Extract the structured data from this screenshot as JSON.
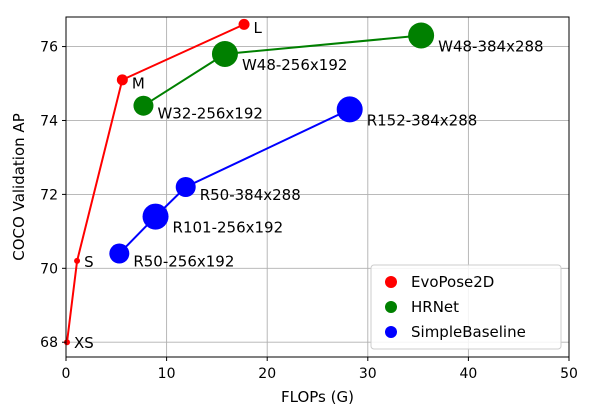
{
  "chart_data": {
    "type": "scatter",
    "xlabel": "FLOPs (G)",
    "ylabel": "COCO Validation AP",
    "xlim": [
      0,
      50
    ],
    "ylim": [
      67.6,
      76.8
    ],
    "xticks": [
      0,
      10,
      20,
      30,
      40,
      50
    ],
    "yticks": [
      68,
      70,
      72,
      74,
      76
    ],
    "grid": true,
    "legend_position": "bottom-right",
    "series": [
      {
        "name": "EvoPose2D",
        "color": "#ff0000",
        "points": [
          {
            "x": 0.1,
            "y": 68.0,
            "label": "XS",
            "size": 1
          },
          {
            "x": 1.1,
            "y": 70.2,
            "label": "S",
            "size": 1
          },
          {
            "x": 5.6,
            "y": 75.1,
            "label": "M",
            "size": 2
          },
          {
            "x": 17.7,
            "y": 76.6,
            "label": "L",
            "size": 2
          }
        ]
      },
      {
        "name": "HRNet",
        "color": "#008000",
        "points": [
          {
            "x": 7.7,
            "y": 74.4,
            "label": "W32-256x192",
            "size": 3
          },
          {
            "x": 15.8,
            "y": 75.8,
            "label": "W48-256x192",
            "size": 4
          },
          {
            "x": 35.3,
            "y": 76.3,
            "label": "W48-384x288",
            "size": 4
          }
        ]
      },
      {
        "name": "SimpleBaseline",
        "color": "#0000ff",
        "points": [
          {
            "x": 5.3,
            "y": 70.4,
            "label": "R50-256x192",
            "size": 3
          },
          {
            "x": 8.9,
            "y": 71.4,
            "label": "R101-256x192",
            "size": 4
          },
          {
            "x": 11.9,
            "y": 72.2,
            "label": "R50-384x288",
            "size": 3
          },
          {
            "x": 28.2,
            "y": 74.3,
            "label": "R152-384x288",
            "size": 4
          }
        ]
      }
    ]
  }
}
